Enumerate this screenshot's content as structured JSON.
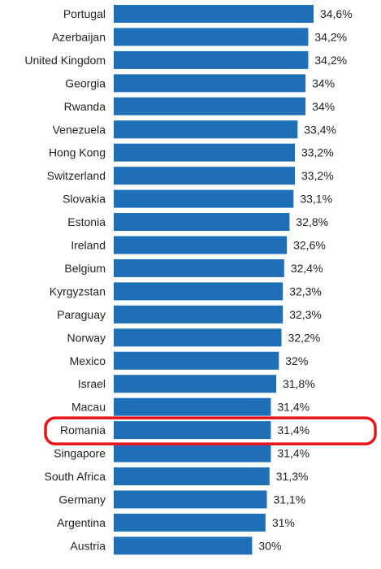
{
  "chart_data": {
    "type": "bar",
    "orientation": "horizontal",
    "categories": [
      "Portugal",
      "Azerbaijan",
      "United Kingdom",
      "Georgia",
      "Rwanda",
      "Venezuela",
      "Hong Kong",
      "Switzerland",
      "Slovakia",
      "Estonia",
      "Ireland",
      "Belgium",
      "Kyrgyzstan",
      "Paraguay",
      "Norway",
      "Mexico",
      "Israel",
      "Macau",
      "Romania",
      "Singapore",
      "South Africa",
      "Germany",
      "Argentina",
      "Austria"
    ],
    "values": [
      34.6,
      34.2,
      34.2,
      34,
      34,
      33.4,
      33.2,
      33.2,
      33.1,
      32.8,
      32.6,
      32.4,
      32.3,
      32.3,
      32.2,
      32,
      31.8,
      31.4,
      31.4,
      31.4,
      31.3,
      31.1,
      31,
      30
    ],
    "value_labels": [
      "34,6%",
      "34,2%",
      "34,2%",
      "34%",
      "34%",
      "33,4%",
      "33,2%",
      "33,2%",
      "33,1%",
      "32,8%",
      "32,6%",
      "32,4%",
      "32,3%",
      "32,3%",
      "32,2%",
      "32%",
      "31,8%",
      "31,4%",
      "31,4%",
      "31,4%",
      "31,3%",
      "31,1%",
      "31%",
      "30%"
    ],
    "title": "",
    "xlabel": "",
    "ylabel": "",
    "highlight": "Romania",
    "grid": false,
    "legend": "none",
    "colors": {
      "bar": "#1f6fb7",
      "highlight_outline": "#e8141c",
      "text": "#222222"
    }
  }
}
